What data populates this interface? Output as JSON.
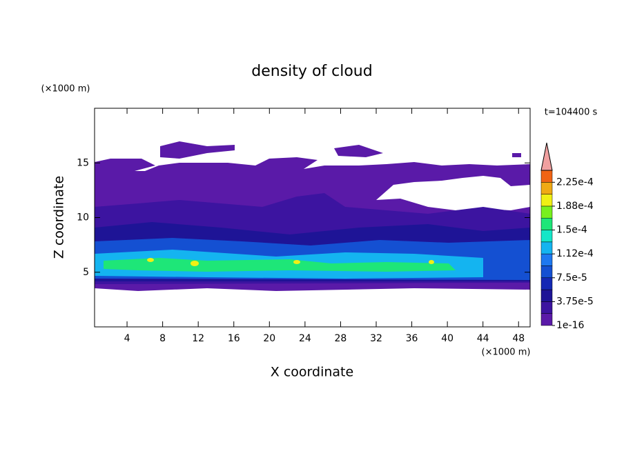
{
  "chart_data": {
    "type": "contour",
    "title": "density of cloud",
    "x_label": "X coordinate",
    "y_label": "Z coordinate",
    "x_unit": "(×1000 m)",
    "y_unit": "(×1000 m)",
    "time_label": "t=104400 s",
    "xlim": [
      0.35,
      49.3
    ],
    "xticks": [
      4,
      8,
      12,
      16,
      20,
      24,
      28,
      32,
      36,
      40,
      44,
      48
    ],
    "ylim": [
      0,
      20
    ],
    "yticks": [
      5,
      10,
      15
    ],
    "colorbar": {
      "ticks": [
        {
          "value": 1e-16,
          "label": "1e-16"
        },
        {
          "value": 3.75e-05,
          "label": "3.75e-5"
        },
        {
          "value": 7.5e-05,
          "label": "7.5e-5"
        },
        {
          "value": 0.000112,
          "label": "1.12e-4"
        },
        {
          "value": 0.00015,
          "label": "1.5e-4"
        },
        {
          "value": 0.000188,
          "label": "1.88e-4"
        },
        {
          "value": 0.000225,
          "label": "2.25e-4"
        }
      ],
      "colors": [
        "#5a1aa8",
        "#3c14a0",
        "#1e1496",
        "#1428b4",
        "#1450d2",
        "#1e78f0",
        "#14b4f0",
        "#14e6c8",
        "#1ee678",
        "#78f01e",
        "#f0f014",
        "#f0aa14",
        "#f06414"
      ],
      "over_color": "#f0a0a0"
    }
  }
}
